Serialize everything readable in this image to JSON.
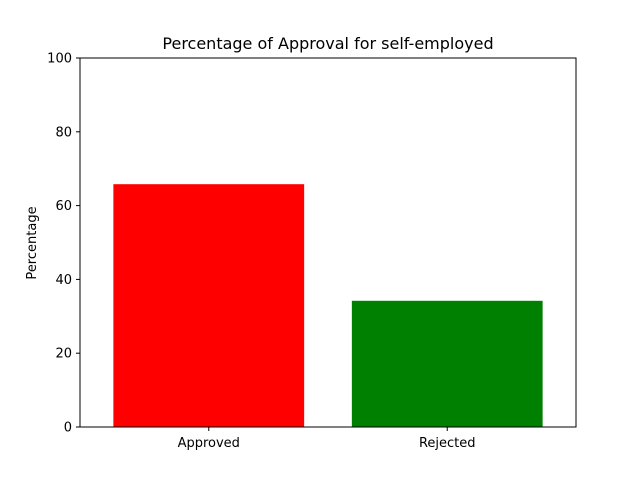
{
  "chart_data": {
    "type": "bar",
    "title": "Percentage of Approval for self-employed",
    "xlabel": "",
    "ylabel": "Percentage",
    "categories": [
      "Approved",
      "Rejected"
    ],
    "values": [
      65.8,
      34.2
    ],
    "colors": [
      "#ff0000",
      "#008000"
    ],
    "ylim": [
      0,
      100
    ],
    "yticks": [
      0,
      20,
      40,
      60,
      80,
      100
    ],
    "grid": false,
    "legend": "none"
  }
}
